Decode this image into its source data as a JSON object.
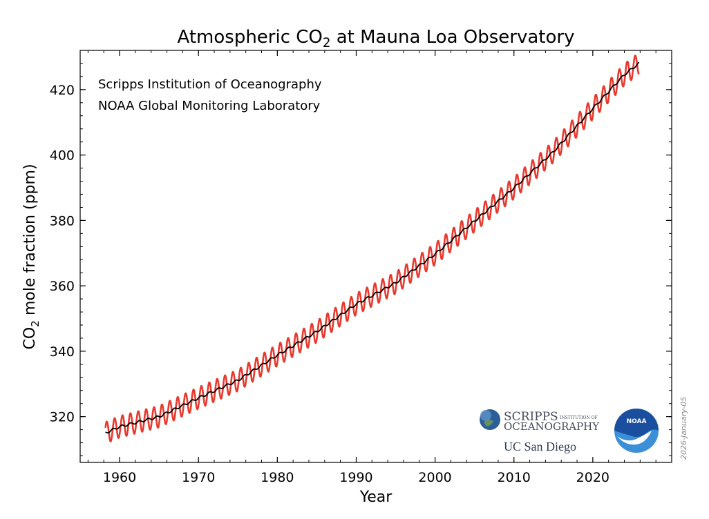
{
  "chart_data": {
    "type": "line",
    "title_parts": [
      "Atmospheric CO",
      "2",
      " at Mauna Loa Observatory"
    ],
    "xlabel": "Year",
    "ylabel_parts": [
      "CO",
      "2",
      " mole fraction (ppm)"
    ],
    "xlim": [
      1955,
      2030
    ],
    "ylim": [
      306,
      432
    ],
    "x_ticks": [
      1960,
      1970,
      1980,
      1990,
      2000,
      2010,
      2020
    ],
    "y_ticks": [
      320,
      340,
      360,
      380,
      400,
      420
    ],
    "x_minor_step": 2,
    "y_minor_step": 4,
    "grid": false,
    "annotations": [
      "Scripps Institution of Oceanography",
      "NOAA Global Monitoring Laboratory"
    ],
    "date_stamp": "2026-January-05",
    "series": [
      {
        "role": "monthly-mean",
        "color": "#e8392e",
        "seasonal_amplitude_ppm": 3.3,
        "x_start": 1958.2,
        "x_end": 2025.9
      },
      {
        "role": "seasonally-corrected-trend",
        "color": "#000000",
        "x": [
          1958.2,
          1960,
          1965,
          1970,
          1975,
          1980,
          1985,
          1990,
          1995,
          2000,
          2005,
          2010,
          2015,
          2020,
          2024,
          2025.9
        ],
        "y": [
          315.0,
          316.9,
          320.0,
          325.7,
          331.1,
          338.8,
          346.0,
          354.4,
          360.9,
          369.7,
          379.8,
          389.9,
          401.0,
          414.2,
          424.6,
          428.1
        ]
      }
    ]
  },
  "logos": {
    "scripps_main": "SCRIPPS",
    "scripps_small_1": "INSTITUTION OF",
    "scripps_line2": "OCEANOGRAPHY",
    "ucsd": "UC San Diego",
    "noaa": "NOAA"
  },
  "colors": {
    "monthly": "#e8392e",
    "trend": "#000000",
    "noaa_dark": "#1a4fa0",
    "noaa_light": "#3a8fd8",
    "scripps_text": "#444a5c"
  }
}
